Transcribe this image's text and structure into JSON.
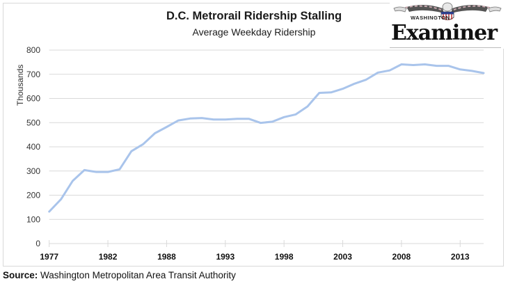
{
  "chart_data": {
    "type": "line",
    "title": "D.C. Metrorail Ridership Stalling",
    "subtitle": "Average Weekday Ridership",
    "xlabel": "",
    "ylabel": "Thousands",
    "ylim": [
      0,
      800
    ],
    "yticks": [
      0,
      100,
      200,
      300,
      400,
      500,
      600,
      700,
      800
    ],
    "grid": true,
    "legend": "none",
    "categories": [
      "1977",
      "1978",
      "1979",
      "1980",
      "1981",
      "1982",
      "1984",
      "1985",
      "1986",
      "1987",
      "1988",
      "1989",
      "1990",
      "1991",
      "1992",
      "1993",
      "1994",
      "1995",
      "1996",
      "1997",
      "1998",
      "1999",
      "2000",
      "2001",
      "2002",
      "2003",
      "2004",
      "2005",
      "2006",
      "2007",
      "2008",
      "2009",
      "2010",
      "2011",
      "2012",
      "2013",
      "2014",
      "2015"
    ],
    "xtick_labels": [
      "1977",
      "1982",
      "1988",
      "1993",
      "1998",
      "2003",
      "2008",
      "2013"
    ],
    "xtick_interval": 5,
    "series": [
      {
        "name": "Average Weekday Ridership",
        "color": "#a9c4eb",
        "values": [
          132,
          183,
          259,
          304,
          296,
          296,
          307,
          382,
          411,
          456,
          482,
          509,
          517,
          519,
          513,
          513,
          516,
          516,
          499,
          504,
          523,
          534,
          567,
          623,
          625,
          640,
          661,
          678,
          707,
          716,
          741,
          738,
          741,
          735,
          735,
          720,
          714,
          705
        ]
      }
    ]
  },
  "source": {
    "label": "Source:",
    "text": "Washington Metropolitan Area Transit Authority"
  },
  "logo": {
    "small": "WASHINGTON",
    "word": "Examiner"
  },
  "colors": {
    "line": "#a9c4eb",
    "grid": "#d9d9d9",
    "axis": "#d9d9d9"
  }
}
